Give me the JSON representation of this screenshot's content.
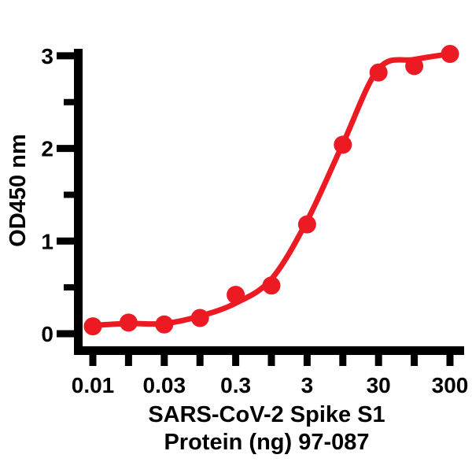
{
  "chart": {
    "background": "#ffffff",
    "axis_color": "#000000",
    "text_color": "#000000"
  },
  "chart_data": {
    "type": "line",
    "subtype": "dose-response-sigmoid-with-markers",
    "title": "",
    "xlabel": "SARS-CoV-2 Spike S1 Protein (ng) 97-087",
    "xlabel_lines": [
      "SARS-CoV-2 Spike S1",
      "Protein (ng) 97-087"
    ],
    "ylabel": "OD450 nm",
    "x_scale": "log",
    "x_tick_labels": [
      "0.01",
      "",
      "0.03",
      "",
      "0.3",
      "",
      "3",
      "",
      "30",
      "",
      "300"
    ],
    "x_tick_values": [
      0.01,
      0.017,
      0.03,
      0.1,
      0.3,
      1,
      3,
      10,
      30,
      100,
      300
    ],
    "y_major_ticks": [
      0,
      1,
      2,
      3
    ],
    "y_minor_ticks": [
      0.5,
      1.5,
      2.5
    ],
    "ylim": [
      0,
      3.1
    ],
    "grid": "off",
    "legend": "none",
    "series": [
      {
        "color": "#EC1B23",
        "marker": "filled-circle",
        "x": [
          0.01,
          0.017,
          0.03,
          0.1,
          0.3,
          1,
          3,
          10,
          30,
          100,
          300
        ],
        "od_values": [
          0.08,
          0.12,
          0.1,
          0.17,
          0.42,
          0.52,
          1.18,
          2.04,
          2.82,
          2.89,
          3.02
        ],
        "fit_curve_od": [
          0.09,
          0.11,
          0.11,
          0.19,
          0.33,
          0.59,
          1.22,
          2.05,
          2.86,
          2.96,
          3.02
        ]
      }
    ]
  }
}
